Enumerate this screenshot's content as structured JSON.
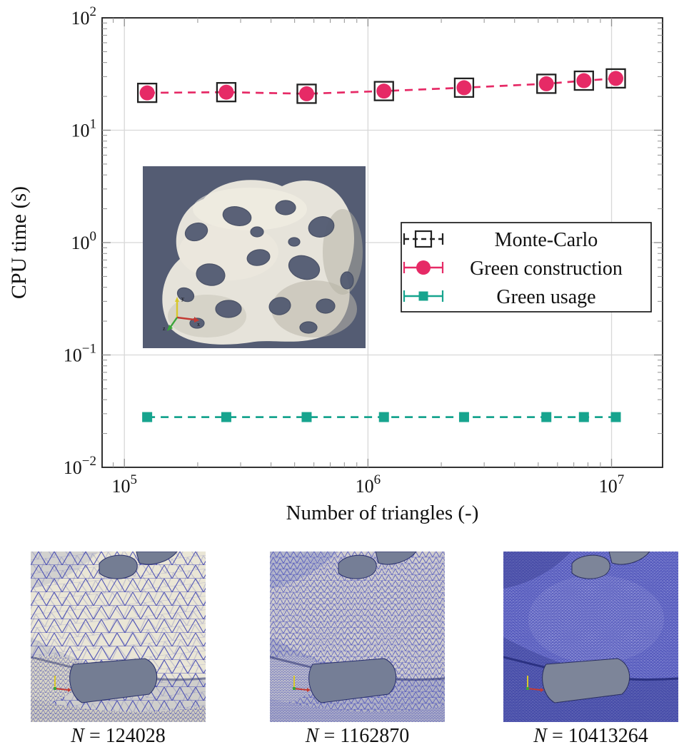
{
  "colors": {
    "grid": "#d8d8d8",
    "frame": "#1b1b1b",
    "tick": "#909090",
    "pink": "#e62a66",
    "teal": "#17a48e",
    "render_bg": "#545c73",
    "hole_gray": "#747d93",
    "mesh_line_blue": "#2e34ae"
  },
  "chart_data": {
    "type": "scatter",
    "title": "",
    "xlabel": "Number of triangles (-)",
    "ylabel": "CPU time (s)",
    "x_scale": "log",
    "y_scale": "log",
    "xlim": [
      81000,
      16200000
    ],
    "ylim": [
      0.01,
      100
    ],
    "grid": true,
    "tick_base": "10",
    "x_tick_exponents": [
      5,
      6,
      7
    ],
    "y_tick_exponents": [
      2,
      1,
      0,
      -1,
      -2
    ],
    "legend_position": "middle-right",
    "x": [
      124028,
      262000,
      560000,
      1162870,
      2480000,
      5400000,
      7700000,
      10413264
    ],
    "series": [
      {
        "name": "Monte-Carlo",
        "marker": "open-square",
        "color": "#222222",
        "line": "none",
        "values": [
          21.5,
          21.8,
          21.1,
          22.3,
          23.9,
          25.9,
          27.6,
          28.9
        ]
      },
      {
        "name": "Green construction",
        "marker": "filled-circle",
        "color": "#e62a66",
        "line": "dashed",
        "values": [
          21.5,
          21.8,
          21.1,
          22.3,
          23.9,
          25.9,
          27.6,
          28.9
        ]
      },
      {
        "name": "Green usage",
        "marker": "filled-square",
        "color": "#17a48e",
        "line": "dashed",
        "values": [
          0.028,
          0.028,
          0.028,
          0.028,
          0.028,
          0.028,
          0.028,
          0.028
        ]
      }
    ]
  },
  "inset": {
    "axes_labels": {
      "x": "x",
      "y": "y",
      "z": "z"
    }
  },
  "thumbnails": [
    {
      "var": "N",
      "eq": "=",
      "value": "124028"
    },
    {
      "var": "N",
      "eq": "=",
      "value": "1162870"
    },
    {
      "var": "N",
      "eq": "=",
      "value": "10413264"
    }
  ]
}
